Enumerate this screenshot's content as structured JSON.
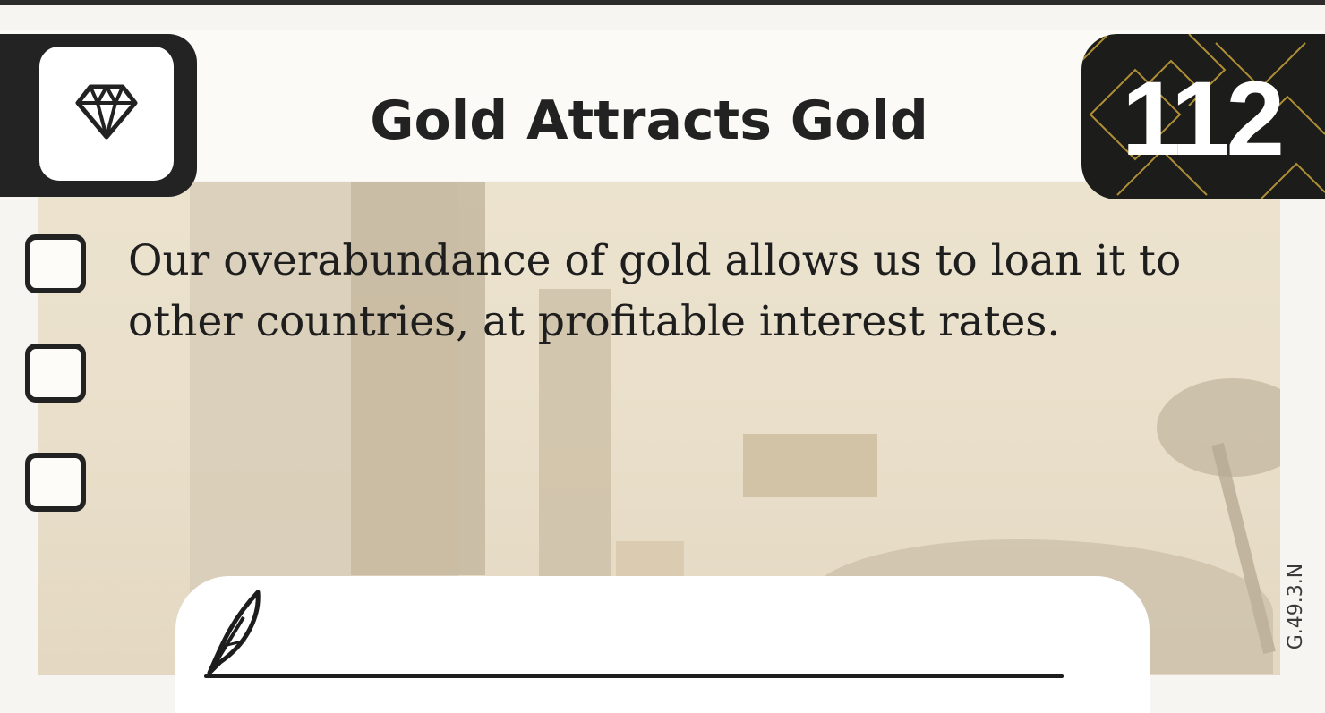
{
  "card": {
    "title": "Gold Attracts Gold",
    "number": "112",
    "category_icon": "diamond-icon",
    "checkboxes": [
      {
        "checked": false
      },
      {
        "checked": false
      },
      {
        "checked": false
      }
    ],
    "description": "Our overabundance of gold allows us to loan it to other countries, at profitable interest rates.",
    "notes_icon": "quill-icon",
    "code": "G.49.3.N"
  },
  "colors": {
    "frame": "#232323",
    "badge": "#1c1c1a",
    "badge_pattern": "#c9a43a",
    "background_art": "#e9dfca"
  }
}
